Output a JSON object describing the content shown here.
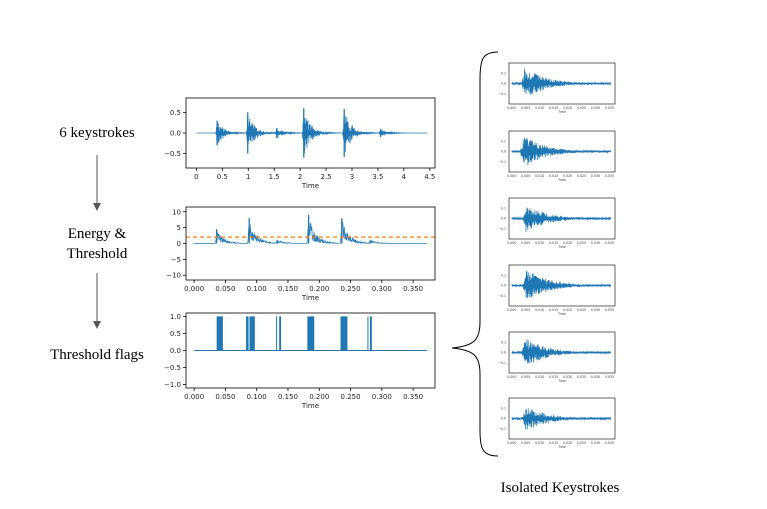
{
  "stages": [
    {
      "lines": [
        "6 keystrokes"
      ]
    },
    {
      "lines": [
        "Energy &",
        "Threshold"
      ]
    },
    {
      "lines": [
        "Threshold flags"
      ]
    }
  ],
  "caption": "Isolated Keystrokes",
  "colors": {
    "line": "#1f77b4",
    "threshold": "#ff7f0e",
    "arrow": "#555555"
  },
  "chart_data": [
    {
      "type": "line",
      "name": "waveform",
      "xlabel": "Time",
      "xlim": [
        -0.2,
        4.6
      ],
      "ylim": [
        -0.85,
        0.85
      ],
      "xticks": [
        0,
        0.5,
        1,
        1.5,
        2,
        2.5,
        3,
        3.5,
        4,
        4.5
      ],
      "xtick_labels": [
        "0",
        "0.5",
        "1",
        "1.5",
        "2",
        "2.5",
        "3",
        "3.5",
        "4",
        "4.5"
      ],
      "yticks": [
        0.5,
        0.0,
        -0.5
      ],
      "ytick_labels": [
        "0.5",
        "0.0",
        "−0.5"
      ],
      "x_end": 4.45,
      "bursts": [
        {
          "t": 0.4,
          "amp": 0.3
        },
        {
          "t": 0.99,
          "amp": 0.5
        },
        {
          "t": 1.55,
          "amp": 0.12
        },
        {
          "t": 2.07,
          "amp": 0.6
        },
        {
          "t": 2.85,
          "amp": 0.58
        },
        {
          "t": 3.55,
          "amp": 0.1
        }
      ]
    },
    {
      "type": "line",
      "name": "energy",
      "xlabel": "Time",
      "xlim": [
        -0.013,
        0.385
      ],
      "ylim": [
        -11.5,
        11.5
      ],
      "xticks": [
        0,
        0.05,
        0.1,
        0.15,
        0.2,
        0.25,
        0.3,
        0.35
      ],
      "xtick_labels": [
        "0.000",
        "0.050",
        "0.100",
        "0.150",
        "0.200",
        "0.250",
        "0.300",
        "0.350"
      ],
      "yticks": [
        10,
        5,
        0,
        -5,
        -10
      ],
      "ytick_labels": [
        "10",
        "5",
        "0",
        "−5",
        "−10"
      ],
      "threshold": 2,
      "x_end": 0.372,
      "bursts": [
        {
          "t": 0.036,
          "amp": 4.5
        },
        {
          "t": 0.088,
          "amp": 8
        },
        {
          "t": 0.133,
          "amp": 1
        },
        {
          "t": 0.183,
          "amp": 9
        },
        {
          "t": 0.236,
          "amp": 8
        },
        {
          "t": 0.282,
          "amp": 1
        }
      ]
    },
    {
      "type": "line",
      "name": "flags",
      "xlabel": "Time",
      "xlim": [
        -0.013,
        0.385
      ],
      "ylim": [
        -1.1,
        1.1
      ],
      "xticks": [
        0,
        0.05,
        0.1,
        0.15,
        0.2,
        0.25,
        0.3,
        0.35
      ],
      "xtick_labels": [
        "0.000",
        "0.050",
        "0.100",
        "0.150",
        "0.200",
        "0.250",
        "0.300",
        "0.350"
      ],
      "yticks": [
        1.0,
        0.5,
        0.0,
        -0.5,
        -1.0
      ],
      "ytick_labels": [
        "1.0",
        "0.5",
        "0.0",
        "−0.5",
        "−1.0"
      ],
      "x_end": 0.372,
      "flag_intervals": [
        [
          0.036,
          0.046
        ],
        [
          0.083,
          0.087
        ],
        [
          0.0885,
          0.097
        ],
        [
          0.131,
          0.132
        ],
        [
          0.136,
          0.139
        ],
        [
          0.181,
          0.192
        ],
        [
          0.234,
          0.245
        ],
        [
          0.277,
          0.278
        ],
        [
          0.281,
          0.284
        ]
      ]
    }
  ],
  "isolated_keystrokes": {
    "xlabel": "Time",
    "xtick_labels": [
      "0.000",
      "0.005",
      "0.010",
      "0.015",
      "0.020",
      "0.025",
      "0.030",
      "0.035"
    ],
    "ytick_labels": [
      "0.1",
      "0.0",
      "−0.1"
    ],
    "thumbnails": [
      {
        "peak_t": 0.0045,
        "amp": 0.16
      },
      {
        "peak_t": 0.004,
        "amp": 0.17
      },
      {
        "peak_t": 0.005,
        "amp": 0.14
      },
      {
        "peak_t": 0.005,
        "amp": 0.17
      },
      {
        "peak_t": 0.0045,
        "amp": 0.15
      },
      {
        "peak_t": 0.0048,
        "amp": 0.13
      }
    ]
  }
}
